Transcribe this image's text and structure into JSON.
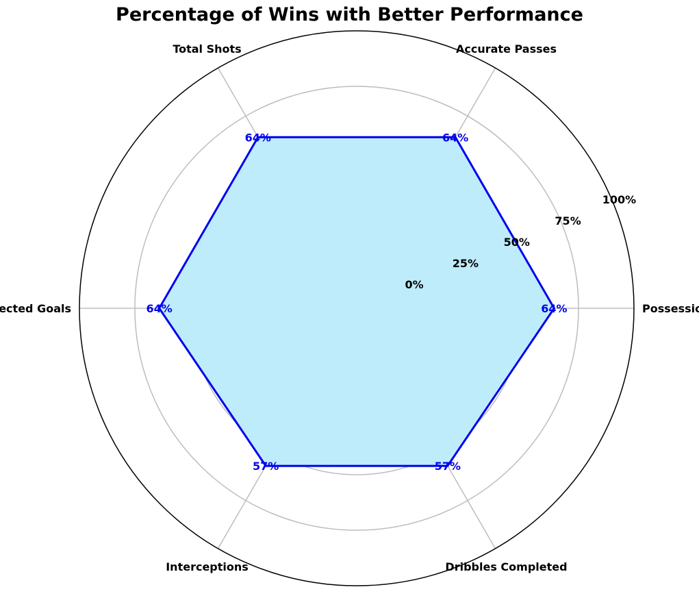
{
  "chart_data": {
    "type": "radar",
    "title": "Percentage of Wins with Better Performance",
    "categories": [
      "Possession",
      "Accurate Passes",
      "Total Shots",
      "Expected Goals",
      "Interceptions",
      "Dribbles Completed"
    ],
    "series": [
      {
        "values": [
          64,
          64,
          64,
          64,
          57,
          57
        ]
      }
    ],
    "value_labels": [
      "64%",
      "64%",
      "64%",
      "64%",
      "57%",
      "57%"
    ],
    "rlim": [
      -25,
      100
    ],
    "rticks": [
      0,
      25,
      50,
      75,
      100
    ],
    "rtick_labels": [
      "0%",
      "25%",
      "50%",
      "75%",
      "100%"
    ],
    "grid": true,
    "colors": {
      "line": "#0000ee",
      "fill": "#bfecfb",
      "grid": "#bdbdbd",
      "outer": "#000000",
      "value_text": "#0000ee"
    }
  }
}
